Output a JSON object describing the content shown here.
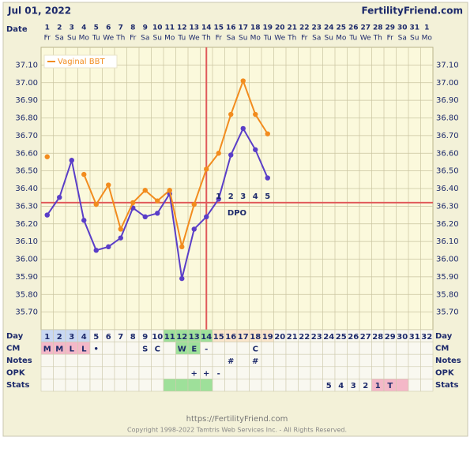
{
  "chart_data": {
    "type": "line",
    "title": "Jul 01, 2022",
    "site": "FertilityFriend.com",
    "x_label": "Date",
    "categories": [
      "1",
      "2",
      "3",
      "4",
      "5",
      "6",
      "7",
      "8",
      "9",
      "10",
      "11",
      "12",
      "13",
      "14",
      "15",
      "16",
      "17",
      "18",
      "19",
      "20",
      "21",
      "22",
      "23",
      "24",
      "25",
      "26",
      "27",
      "28",
      "29",
      "30",
      "31",
      "1"
    ],
    "weekdays": [
      "Fr",
      "Sa",
      "Su",
      "Mo",
      "Tu",
      "We",
      "Th",
      "Fr",
      "Sa",
      "Su",
      "Mo",
      "Tu",
      "We",
      "Th",
      "Fr",
      "Sa",
      "Su",
      "Mo",
      "Tu",
      "We",
      "Th",
      "Fr",
      "Sa",
      "Su",
      "Mo",
      "Tu",
      "We",
      "Th",
      "Fr",
      "Sa",
      "Su",
      "Mo"
    ],
    "ylim": [
      35.6,
      37.2
    ],
    "yticks": [
      {
        "value": 35.7,
        "label": "35.70"
      },
      {
        "value": 35.8,
        "label": "35.80"
      },
      {
        "value": 35.9,
        "label": "35.90"
      },
      {
        "value": 36.0,
        "label": "36.00"
      },
      {
        "value": 36.1,
        "label": "36.10"
      },
      {
        "value": 36.2,
        "label": "36.20"
      },
      {
        "value": 36.3,
        "label": "36.30"
      },
      {
        "value": 36.4,
        "label": "36.40"
      },
      {
        "value": 36.5,
        "label": "36.50"
      },
      {
        "value": 36.6,
        "label": "36.60"
      },
      {
        "value": 36.7,
        "label": "36.70"
      },
      {
        "value": 36.8,
        "label": "36.80"
      },
      {
        "value": 36.9,
        "label": "36.90"
      },
      {
        "value": 37.0,
        "label": "37.00"
      },
      {
        "value": 37.1,
        "label": "37.10"
      }
    ],
    "grid": true,
    "legend": "top-left",
    "series": [
      {
        "color": "#5a3ec8",
        "values": [
          36.25,
          36.35,
          36.56,
          36.22,
          36.05,
          36.07,
          36.12,
          36.29,
          36.24,
          36.26,
          36.37,
          35.89,
          36.17,
          36.24,
          36.34,
          36.59,
          36.74,
          36.62,
          36.46,
          null,
          null,
          null,
          null,
          null,
          null,
          null,
          null,
          null,
          null,
          null,
          null,
          null
        ]
      },
      {
        "name": "Vaginal BBT",
        "color": "#f28c1e",
        "values": [
          36.58,
          null,
          null,
          36.48,
          36.31,
          36.42,
          36.17,
          36.32,
          36.39,
          36.33,
          36.39,
          36.07,
          36.31,
          36.51,
          36.6,
          36.82,
          37.01,
          36.82,
          36.71,
          null,
          null,
          null,
          null,
          null,
          null,
          null,
          null,
          null,
          null,
          null,
          null,
          null
        ]
      }
    ],
    "coverline": 36.32,
    "coverline_color": "#e05a5a",
    "ovulation_day": 14,
    "dpo": {
      "label": "DPO",
      "values": [
        1,
        2,
        3,
        4,
        5
      ]
    },
    "rows": [
      {
        "label": "Day",
        "values": [
          1,
          2,
          3,
          4,
          5,
          6,
          7,
          8,
          9,
          10,
          11,
          12,
          13,
          14,
          15,
          16,
          17,
          18,
          19,
          20,
          21,
          22,
          23,
          24,
          25,
          26,
          27,
          28,
          29,
          30,
          31,
          32
        ],
        "fills": [
          "#c9d8f2",
          "#c9d8f2",
          "#c9d8f2",
          "#c9d8f2",
          null,
          null,
          null,
          null,
          null,
          null,
          "#9ee09a",
          "#9ee09a",
          "#9ee09a",
          "#9ee09a",
          "#fbe6cc",
          "#fbe6cc",
          "#fbe6cc",
          "#fbe6cc",
          "#fbe6cc",
          null,
          null,
          null,
          null,
          null,
          null,
          null,
          null,
          null,
          null,
          null,
          null,
          null
        ]
      },
      {
        "label": "CM",
        "values": [
          "M",
          "M",
          "L",
          "L",
          "•",
          null,
          null,
          null,
          "S",
          "C",
          null,
          "W",
          "E",
          "-",
          null,
          null,
          null,
          "C",
          null,
          null,
          null,
          null,
          null,
          null,
          null,
          null,
          null,
          null,
          null,
          null,
          null,
          null
        ],
        "fills": [
          "#f4b8c8",
          "#f4b8c8",
          "#f4b8c8",
          "#f4b8c8",
          null,
          null,
          null,
          null,
          null,
          null,
          null,
          "#9ee09a",
          "#9ee09a",
          null,
          null,
          null,
          null,
          null,
          null,
          null,
          null,
          null,
          null,
          null,
          null,
          null,
          null,
          null,
          null,
          null,
          null,
          null
        ]
      },
      {
        "label": "Notes",
        "values": [
          null,
          null,
          null,
          null,
          null,
          null,
          null,
          null,
          null,
          null,
          null,
          null,
          null,
          null,
          null,
          "#",
          null,
          "#",
          null,
          null,
          null,
          null,
          null,
          null,
          null,
          null,
          null,
          null,
          null,
          null,
          null,
          null
        ],
        "fills": [
          null,
          null,
          null,
          null,
          null,
          null,
          null,
          null,
          null,
          null,
          null,
          null,
          null,
          null,
          null,
          null,
          null,
          null,
          null,
          null,
          null,
          null,
          null,
          null,
          null,
          null,
          null,
          null,
          null,
          null,
          null,
          null
        ]
      },
      {
        "label": "OPK",
        "values": [
          null,
          null,
          null,
          null,
          null,
          null,
          null,
          null,
          null,
          null,
          null,
          null,
          "+",
          "+",
          "-",
          null,
          null,
          null,
          null,
          null,
          null,
          null,
          null,
          null,
          null,
          null,
          null,
          null,
          null,
          null,
          null,
          null
        ],
        "fills": [
          null,
          null,
          null,
          null,
          null,
          null,
          null,
          null,
          null,
          null,
          null,
          null,
          null,
          null,
          null,
          null,
          null,
          null,
          null,
          null,
          null,
          null,
          null,
          null,
          null,
          null,
          null,
          null,
          null,
          null,
          null,
          null
        ]
      },
      {
        "label": "Stats",
        "values": [
          null,
          null,
          null,
          null,
          null,
          null,
          null,
          null,
          null,
          null,
          null,
          null,
          null,
          null,
          null,
          null,
          null,
          null,
          null,
          null,
          null,
          null,
          null,
          "5",
          "4",
          "3",
          "2",
          "1",
          "T",
          null,
          null,
          null
        ],
        "fills": [
          null,
          null,
          null,
          null,
          null,
          null,
          null,
          null,
          null,
          null,
          "#9ee09a",
          "#9ee09a",
          "#9ee09a",
          "#9ee09a",
          null,
          null,
          null,
          null,
          null,
          null,
          null,
          null,
          null,
          null,
          null,
          null,
          null,
          "#f4b8c8",
          "#f4b8c8",
          "#f4b8c8",
          null,
          null
        ]
      }
    ],
    "footer_url": "https://FertilityFriend.com",
    "copyright": "Copyright 1998-2022 Tamtris Web Services Inc. - All Rights Reserved."
  }
}
